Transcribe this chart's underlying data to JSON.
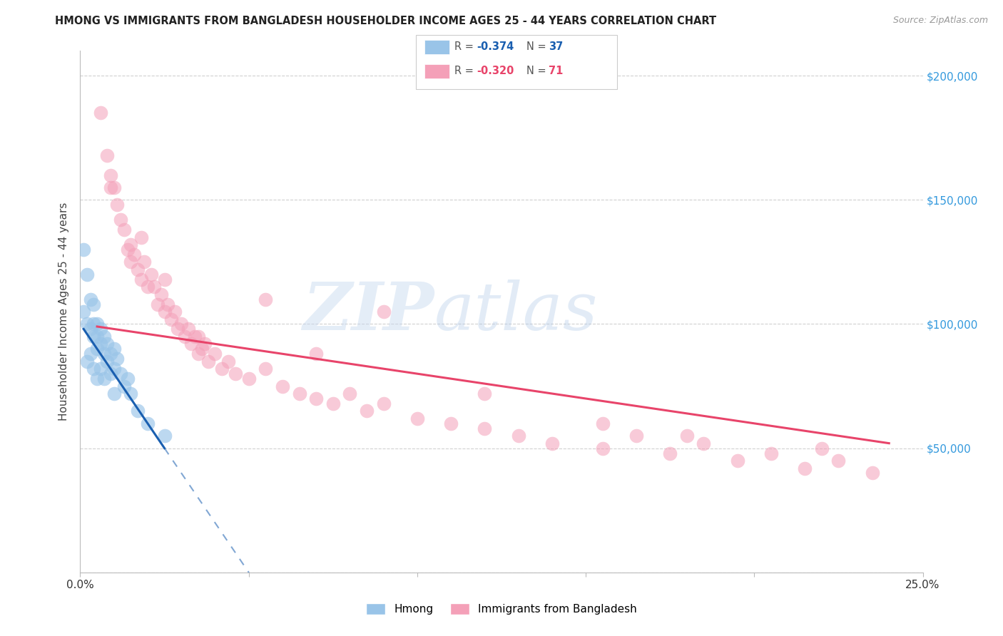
{
  "title": "HMONG VS IMMIGRANTS FROM BANGLADESH HOUSEHOLDER INCOME AGES 25 - 44 YEARS CORRELATION CHART",
  "source": "Source: ZipAtlas.com",
  "ylabel": "Householder Income Ages 25 - 44 years",
  "x_min": 0.0,
  "x_max": 0.25,
  "y_min": 0,
  "y_max": 210000,
  "x_ticks": [
    0.0,
    0.05,
    0.1,
    0.15,
    0.2,
    0.25
  ],
  "x_tick_labels": [
    "0.0%",
    "",
    "",
    "",
    "",
    "25.0%"
  ],
  "y_ticks": [
    0,
    50000,
    100000,
    150000,
    200000
  ],
  "y_tick_labels": [
    "",
    "$50,000",
    "$100,000",
    "$150,000",
    "$200,000"
  ],
  "legend_entries": [
    {
      "r_val": "-0.374",
      "n_val": "37"
    },
    {
      "r_val": "-0.320",
      "n_val": "71"
    }
  ],
  "legend_title_hmong": "Hmong",
  "legend_title_bangladesh": "Immigrants from Bangladesh",
  "watermark_zip": "ZIP",
  "watermark_atlas": "atlas",
  "hmong_color": "#99c4e8",
  "bangladesh_color": "#f4a0b8",
  "hmong_line_color": "#1a5fb0",
  "bangladesh_line_color": "#e8446a",
  "hmong_scatter_x": [
    0.001,
    0.001,
    0.002,
    0.002,
    0.002,
    0.003,
    0.003,
    0.003,
    0.004,
    0.004,
    0.004,
    0.004,
    0.005,
    0.005,
    0.005,
    0.005,
    0.006,
    0.006,
    0.006,
    0.007,
    0.007,
    0.007,
    0.008,
    0.008,
    0.009,
    0.009,
    0.01,
    0.01,
    0.01,
    0.011,
    0.012,
    0.013,
    0.014,
    0.015,
    0.017,
    0.02,
    0.025
  ],
  "hmong_scatter_y": [
    130000,
    105000,
    120000,
    100000,
    85000,
    110000,
    98000,
    88000,
    108000,
    100000,
    95000,
    82000,
    100000,
    95000,
    90000,
    78000,
    98000,
    92000,
    82000,
    95000,
    88000,
    78000,
    92000,
    85000,
    88000,
    80000,
    90000,
    82000,
    72000,
    86000,
    80000,
    75000,
    78000,
    72000,
    65000,
    60000,
    55000
  ],
  "bangladesh_scatter_x": [
    0.006,
    0.008,
    0.009,
    0.01,
    0.011,
    0.012,
    0.013,
    0.014,
    0.015,
    0.015,
    0.016,
    0.017,
    0.018,
    0.019,
    0.02,
    0.021,
    0.022,
    0.023,
    0.024,
    0.025,
    0.026,
    0.027,
    0.028,
    0.029,
    0.03,
    0.031,
    0.032,
    0.033,
    0.034,
    0.035,
    0.036,
    0.037,
    0.038,
    0.04,
    0.042,
    0.044,
    0.046,
    0.05,
    0.055,
    0.06,
    0.065,
    0.07,
    0.075,
    0.08,
    0.085,
    0.09,
    0.1,
    0.11,
    0.12,
    0.13,
    0.14,
    0.155,
    0.165,
    0.175,
    0.185,
    0.195,
    0.205,
    0.215,
    0.225,
    0.235,
    0.009,
    0.018,
    0.025,
    0.035,
    0.055,
    0.07,
    0.09,
    0.12,
    0.155,
    0.18,
    0.22
  ],
  "bangladesh_scatter_y": [
    185000,
    168000,
    160000,
    155000,
    148000,
    142000,
    138000,
    130000,
    132000,
    125000,
    128000,
    122000,
    118000,
    125000,
    115000,
    120000,
    115000,
    108000,
    112000,
    105000,
    108000,
    102000,
    105000,
    98000,
    100000,
    95000,
    98000,
    92000,
    95000,
    88000,
    90000,
    92000,
    85000,
    88000,
    82000,
    85000,
    80000,
    78000,
    82000,
    75000,
    72000,
    70000,
    68000,
    72000,
    65000,
    68000,
    62000,
    60000,
    58000,
    55000,
    52000,
    50000,
    55000,
    48000,
    52000,
    45000,
    48000,
    42000,
    45000,
    40000,
    155000,
    135000,
    118000,
    95000,
    110000,
    88000,
    105000,
    72000,
    60000,
    55000,
    50000
  ]
}
